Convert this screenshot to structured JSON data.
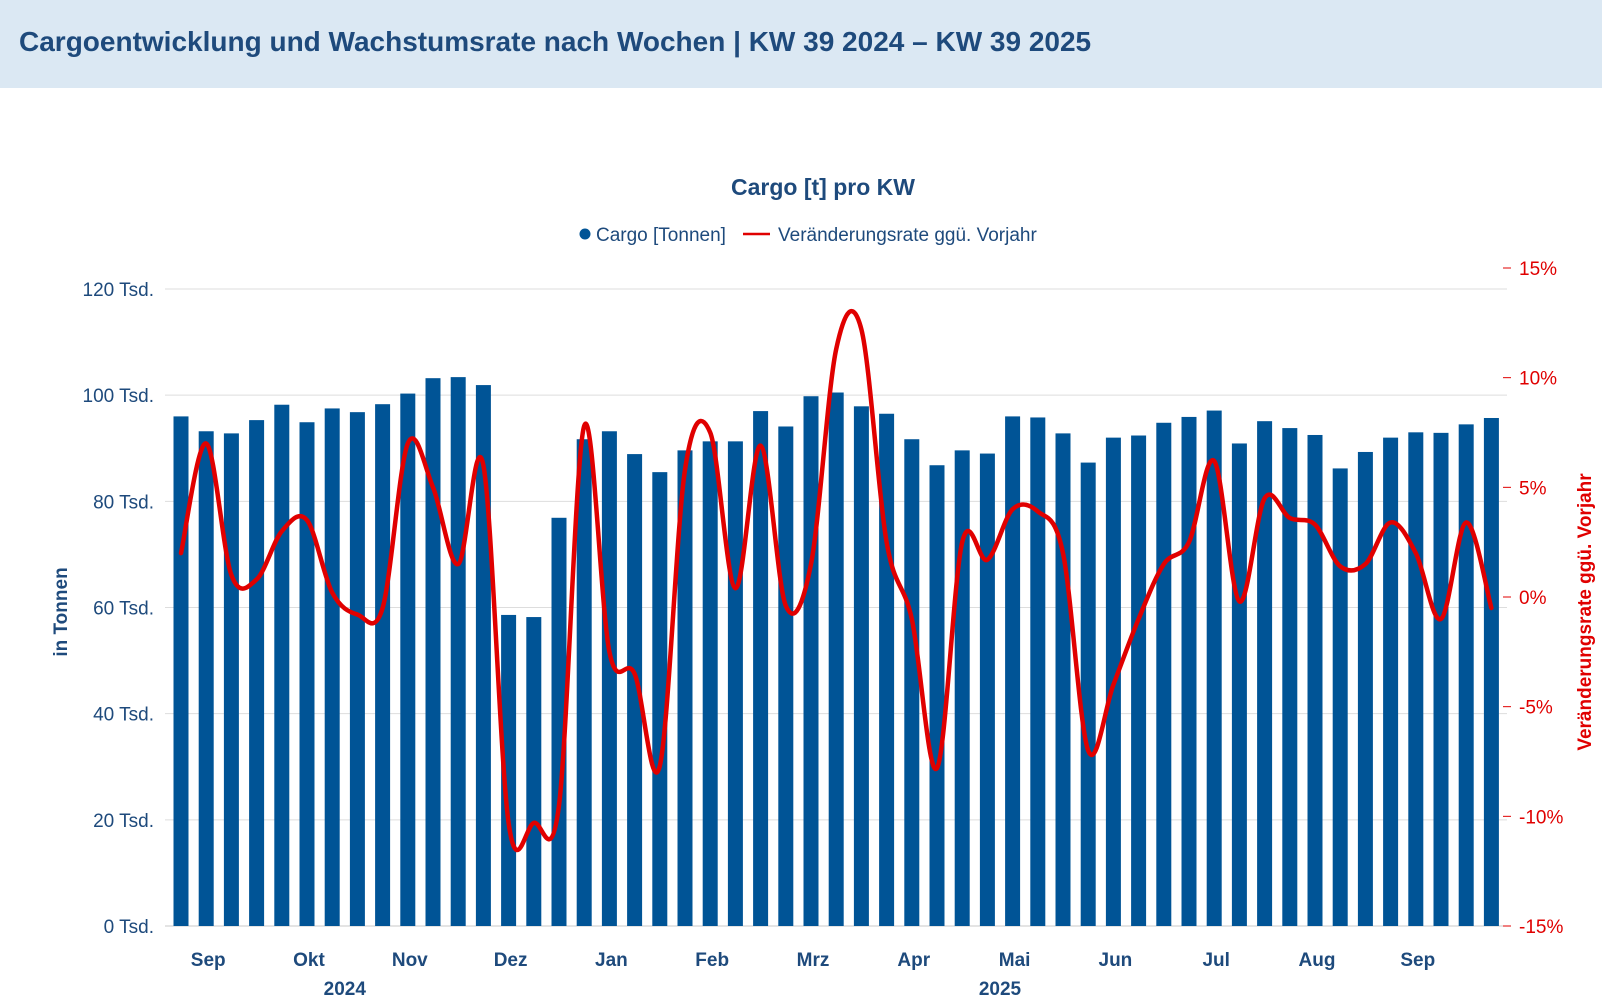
{
  "header": {
    "title": "Cargoentwicklung und Wachstumsrate nach Wochen | KW 39 2024 – KW 39 2025"
  },
  "chart_data": {
    "type": "bar",
    "title": "Cargo [t] pro KW",
    "legend": {
      "placement": "top-center",
      "items": [
        "Cargo [Tonnen]",
        "Veränderungsrate ggü. Vorjahr"
      ]
    },
    "ylabel": "in Tonnen",
    "y2label": "Veränderungsrate ggü. Vorjahr",
    "ylim": [
      0,
      120000
    ],
    "y2lim": [
      -15,
      15
    ],
    "y_ticks": [
      "0 Tsd.",
      "20 Tsd.",
      "40 Tsd.",
      "60 Tsd.",
      "80 Tsd.",
      "100 Tsd.",
      "120 Tsd."
    ],
    "y2_ticks": [
      "-15%",
      "-10%",
      "-5%",
      "0%",
      "5%",
      "10%",
      "15%"
    ],
    "month_labels": [
      "Sep",
      "Okt",
      "Nov",
      "Dez",
      "Jan",
      "Feb",
      "Mrz",
      "Apr",
      "Mai",
      "Jun",
      "Jul",
      "Aug",
      "Sep"
    ],
    "month_positions": [
      1,
      5,
      9,
      13,
      17,
      21,
      25,
      29,
      33,
      37,
      41,
      45,
      49
    ],
    "year_labels": [
      "2024",
      "2025"
    ],
    "year_positions": [
      6.5,
      32.5
    ],
    "grid": true,
    "colors": {
      "bars": "#005496",
      "line": "#e00000"
    },
    "series": [
      {
        "name": "Cargo [Tonnen]",
        "type": "bar",
        "values": [
          96000,
          93200,
          92800,
          95300,
          98200,
          94900,
          97500,
          96800,
          98300,
          100300,
          103200,
          103400,
          101900,
          58600,
          58200,
          76900,
          91700,
          93200,
          88900,
          85500,
          89600,
          91300,
          91300,
          97000,
          94100,
          99800,
          100500,
          97900,
          96500,
          91700,
          86800,
          89600,
          89000,
          96000,
          95800,
          92800,
          87300,
          92000,
          92400,
          94800,
          95900,
          97100,
          90900,
          95100,
          93800,
          92500,
          86200,
          89300,
          92000,
          93000,
          92900,
          94500,
          95700
        ]
      },
      {
        "name": "Veränderungsrate ggü. Vorjahr",
        "type": "line",
        "values": [
          2.0,
          7.0,
          1.0,
          0.8,
          3.0,
          3.5,
          0.2,
          -0.8,
          -0.5,
          7.0,
          5.0,
          1.5,
          6.0,
          -10.3,
          -10.3,
          -9.5,
          7.8,
          -2.5,
          -3.5,
          -7.7,
          5.8,
          7.5,
          0.4,
          6.9,
          -0.4,
          1.5,
          11.3,
          12.2,
          2.5,
          -1.0,
          -7.8,
          2.5,
          1.7,
          4.0,
          3.9,
          2.0,
          -7.0,
          -4.0,
          -1.0,
          1.5,
          2.5,
          6.2,
          -0.2,
          4.5,
          3.6,
          3.3,
          1.4,
          1.5,
          3.4,
          2.0,
          -1.0,
          3.4,
          -0.5
        ]
      }
    ]
  }
}
